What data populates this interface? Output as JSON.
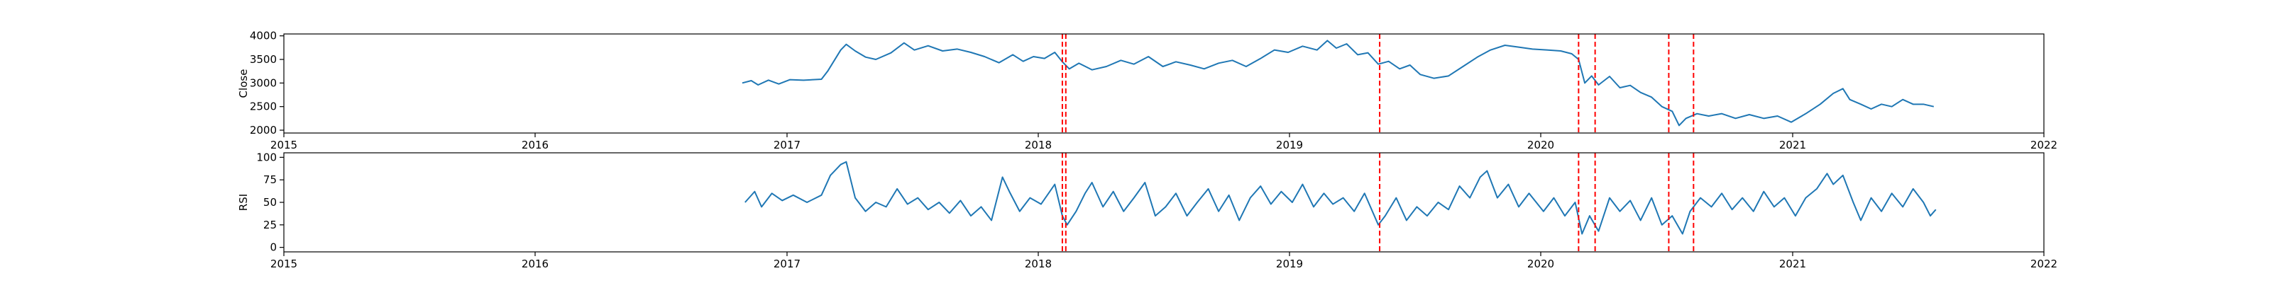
{
  "chart_data": [
    {
      "type": "line",
      "ylabel": "Close",
      "xlim": [
        "2015-01-01",
        "2022-01-01"
      ],
      "ylim": [
        1940,
        4040
      ],
      "x_ticks": [
        "2015",
        "2016",
        "2017",
        "2018",
        "2019",
        "2020",
        "2021",
        "2022"
      ],
      "y_ticks": [
        2000,
        2500,
        3000,
        3500,
        4000
      ],
      "line_color": "#1f77b4",
      "grid": false,
      "series": [
        {
          "points": [
            [
              "2016-10-28",
              3000
            ],
            [
              "2016-11-10",
              3050
            ],
            [
              "2016-11-20",
              2960
            ],
            [
              "2016-12-05",
              3060
            ],
            [
              "2016-12-20",
              2980
            ],
            [
              "2017-01-05",
              3070
            ],
            [
              "2017-01-25",
              3060
            ],
            [
              "2017-02-20",
              3080
            ],
            [
              "2017-03-01",
              3250
            ],
            [
              "2017-03-20",
              3700
            ],
            [
              "2017-03-28",
              3820
            ],
            [
              "2017-04-10",
              3680
            ],
            [
              "2017-04-25",
              3550
            ],
            [
              "2017-05-10",
              3500
            ],
            [
              "2017-06-01",
              3640
            ],
            [
              "2017-06-20",
              3850
            ],
            [
              "2017-07-05",
              3700
            ],
            [
              "2017-07-25",
              3790
            ],
            [
              "2017-08-15",
              3680
            ],
            [
              "2017-09-05",
              3720
            ],
            [
              "2017-09-25",
              3650
            ],
            [
              "2017-10-15",
              3560
            ],
            [
              "2017-11-05",
              3430
            ],
            [
              "2017-11-25",
              3600
            ],
            [
              "2017-12-10",
              3460
            ],
            [
              "2017-12-25",
              3560
            ],
            [
              "2018-01-10",
              3520
            ],
            [
              "2018-01-25",
              3650
            ],
            [
              "2018-02-05",
              3450
            ],
            [
              "2018-02-15",
              3300
            ],
            [
              "2018-03-01",
              3420
            ],
            [
              "2018-03-20",
              3280
            ],
            [
              "2018-04-10",
              3350
            ],
            [
              "2018-05-01",
              3480
            ],
            [
              "2018-05-20",
              3400
            ],
            [
              "2018-06-10",
              3560
            ],
            [
              "2018-07-01",
              3350
            ],
            [
              "2018-07-20",
              3450
            ],
            [
              "2018-08-10",
              3380
            ],
            [
              "2018-08-30",
              3300
            ],
            [
              "2018-09-20",
              3420
            ],
            [
              "2018-10-10",
              3480
            ],
            [
              "2018-10-30",
              3350
            ],
            [
              "2018-11-20",
              3520
            ],
            [
              "2018-12-10",
              3700
            ],
            [
              "2018-12-30",
              3650
            ],
            [
              "2019-01-20",
              3780
            ],
            [
              "2019-02-10",
              3700
            ],
            [
              "2019-02-25",
              3900
            ],
            [
              "2019-03-10",
              3740
            ],
            [
              "2019-03-25",
              3830
            ],
            [
              "2019-04-10",
              3600
            ],
            [
              "2019-04-25",
              3640
            ],
            [
              "2019-05-10",
              3400
            ],
            [
              "2019-05-25",
              3460
            ],
            [
              "2019-06-10",
              3300
            ],
            [
              "2019-06-25",
              3380
            ],
            [
              "2019-07-10",
              3180
            ],
            [
              "2019-07-30",
              3100
            ],
            [
              "2019-08-20",
              3150
            ],
            [
              "2019-09-10",
              3350
            ],
            [
              "2019-10-01",
              3550
            ],
            [
              "2019-10-20",
              3700
            ],
            [
              "2019-11-10",
              3800
            ],
            [
              "2019-11-30",
              3760
            ],
            [
              "2019-12-20",
              3720
            ],
            [
              "2020-01-10",
              3700
            ],
            [
              "2020-01-30",
              3680
            ],
            [
              "2020-02-15",
              3620
            ],
            [
              "2020-02-25",
              3500
            ],
            [
              "2020-03-05",
              3000
            ],
            [
              "2020-03-15",
              3150
            ],
            [
              "2020-03-25",
              2960
            ],
            [
              "2020-04-10",
              3140
            ],
            [
              "2020-04-25",
              2900
            ],
            [
              "2020-05-10",
              2950
            ],
            [
              "2020-05-25",
              2800
            ],
            [
              "2020-06-10",
              2700
            ],
            [
              "2020-06-25",
              2500
            ],
            [
              "2020-07-10",
              2400
            ],
            [
              "2020-07-20",
              2100
            ],
            [
              "2020-07-30",
              2250
            ],
            [
              "2020-08-15",
              2350
            ],
            [
              "2020-09-01",
              2300
            ],
            [
              "2020-09-20",
              2350
            ],
            [
              "2020-10-10",
              2250
            ],
            [
              "2020-10-30",
              2330
            ],
            [
              "2020-11-20",
              2250
            ],
            [
              "2020-12-10",
              2300
            ],
            [
              "2020-12-30",
              2170
            ],
            [
              "2021-01-20",
              2350
            ],
            [
              "2021-02-10",
              2550
            ],
            [
              "2021-03-01",
              2780
            ],
            [
              "2021-03-15",
              2880
            ],
            [
              "2021-03-25",
              2650
            ],
            [
              "2021-04-10",
              2550
            ],
            [
              "2021-04-25",
              2450
            ],
            [
              "2021-05-10",
              2550
            ],
            [
              "2021-05-25",
              2500
            ],
            [
              "2021-06-10",
              2650
            ],
            [
              "2021-06-25",
              2550
            ],
            [
              "2021-07-10",
              2550
            ],
            [
              "2021-07-25",
              2500
            ]
          ]
        }
      ],
      "event_lines": [
        "2018-02-05",
        "2018-02-10",
        "2019-05-12",
        "2020-02-25",
        "2020-03-20",
        "2020-07-05",
        "2020-08-10"
      ],
      "event_line_style": {
        "color": "#ff0000",
        "dash": "dashed"
      }
    },
    {
      "type": "line",
      "ylabel": "RSI",
      "xlim": [
        "2015-01-01",
        "2022-01-01"
      ],
      "ylim": [
        -5,
        105
      ],
      "x_ticks": [
        "2015",
        "2016",
        "2017",
        "2018",
        "2019",
        "2020",
        "2021",
        "2022"
      ],
      "y_ticks": [
        0,
        25,
        50,
        75,
        100
      ],
      "line_color": "#1f77b4",
      "grid": false,
      "series": [
        {
          "points": [
            [
              "2016-11-01",
              50
            ],
            [
              "2016-11-15",
              62
            ],
            [
              "2016-11-25",
              45
            ],
            [
              "2016-12-10",
              60
            ],
            [
              "2016-12-25",
              52
            ],
            [
              "2017-01-10",
              58
            ],
            [
              "2017-01-30",
              50
            ],
            [
              "2017-02-20",
              58
            ],
            [
              "2017-03-05",
              80
            ],
            [
              "2017-03-20",
              92
            ],
            [
              "2017-03-28",
              95
            ],
            [
              "2017-04-10",
              55
            ],
            [
              "2017-04-25",
              40
            ],
            [
              "2017-05-10",
              50
            ],
            [
              "2017-05-25",
              45
            ],
            [
              "2017-06-10",
              65
            ],
            [
              "2017-06-25",
              48
            ],
            [
              "2017-07-10",
              55
            ],
            [
              "2017-07-25",
              42
            ],
            [
              "2017-08-10",
              50
            ],
            [
              "2017-08-25",
              38
            ],
            [
              "2017-09-10",
              52
            ],
            [
              "2017-09-25",
              35
            ],
            [
              "2017-10-10",
              45
            ],
            [
              "2017-10-25",
              30
            ],
            [
              "2017-11-10",
              78
            ],
            [
              "2017-11-20",
              62
            ],
            [
              "2017-12-05",
              40
            ],
            [
              "2017-12-20",
              55
            ],
            [
              "2018-01-05",
              48
            ],
            [
              "2018-01-25",
              70
            ],
            [
              "2018-02-05",
              35
            ],
            [
              "2018-02-12",
              25
            ],
            [
              "2018-02-25",
              40
            ],
            [
              "2018-03-10",
              60
            ],
            [
              "2018-03-20",
              72
            ],
            [
              "2018-04-05",
              45
            ],
            [
              "2018-04-20",
              62
            ],
            [
              "2018-05-05",
              40
            ],
            [
              "2018-05-20",
              55
            ],
            [
              "2018-06-05",
              72
            ],
            [
              "2018-06-20",
              35
            ],
            [
              "2018-07-05",
              45
            ],
            [
              "2018-07-20",
              60
            ],
            [
              "2018-08-05",
              35
            ],
            [
              "2018-08-20",
              50
            ],
            [
              "2018-09-05",
              65
            ],
            [
              "2018-09-20",
              40
            ],
            [
              "2018-10-05",
              58
            ],
            [
              "2018-10-20",
              30
            ],
            [
              "2018-11-05",
              55
            ],
            [
              "2018-11-20",
              68
            ],
            [
              "2018-12-05",
              48
            ],
            [
              "2018-12-20",
              62
            ],
            [
              "2019-01-05",
              50
            ],
            [
              "2019-01-20",
              70
            ],
            [
              "2019-02-05",
              45
            ],
            [
              "2019-02-20",
              60
            ],
            [
              "2019-03-05",
              48
            ],
            [
              "2019-03-20",
              55
            ],
            [
              "2019-04-05",
              40
            ],
            [
              "2019-04-20",
              60
            ],
            [
              "2019-05-10",
              25
            ],
            [
              "2019-05-20",
              35
            ],
            [
              "2019-06-05",
              55
            ],
            [
              "2019-06-20",
              30
            ],
            [
              "2019-07-05",
              45
            ],
            [
              "2019-07-20",
              35
            ],
            [
              "2019-08-05",
              50
            ],
            [
              "2019-08-20",
              42
            ],
            [
              "2019-09-05",
              68
            ],
            [
              "2019-09-20",
              55
            ],
            [
              "2019-10-05",
              78
            ],
            [
              "2019-10-15",
              85
            ],
            [
              "2019-10-30",
              55
            ],
            [
              "2019-11-15",
              70
            ],
            [
              "2019-11-30",
              45
            ],
            [
              "2019-12-15",
              60
            ],
            [
              "2020-01-05",
              40
            ],
            [
              "2020-01-20",
              55
            ],
            [
              "2020-02-05",
              35
            ],
            [
              "2020-02-20",
              50
            ],
            [
              "2020-03-01",
              15
            ],
            [
              "2020-03-12",
              35
            ],
            [
              "2020-03-25",
              18
            ],
            [
              "2020-04-10",
              55
            ],
            [
              "2020-04-25",
              40
            ],
            [
              "2020-05-10",
              52
            ],
            [
              "2020-05-25",
              30
            ],
            [
              "2020-06-10",
              55
            ],
            [
              "2020-06-25",
              25
            ],
            [
              "2020-07-10",
              35
            ],
            [
              "2020-07-25",
              15
            ],
            [
              "2020-08-05",
              40
            ],
            [
              "2020-08-20",
              55
            ],
            [
              "2020-09-05",
              45
            ],
            [
              "2020-09-20",
              60
            ],
            [
              "2020-10-05",
              42
            ],
            [
              "2020-10-20",
              55
            ],
            [
              "2020-11-05",
              40
            ],
            [
              "2020-11-20",
              62
            ],
            [
              "2020-12-05",
              45
            ],
            [
              "2020-12-20",
              55
            ],
            [
              "2021-01-05",
              35
            ],
            [
              "2021-01-20",
              55
            ],
            [
              "2021-02-05",
              65
            ],
            [
              "2021-02-20",
              82
            ],
            [
              "2021-03-01",
              70
            ],
            [
              "2021-03-15",
              80
            ],
            [
              "2021-03-30",
              50
            ],
            [
              "2021-04-10",
              30
            ],
            [
              "2021-04-25",
              55
            ],
            [
              "2021-05-10",
              40
            ],
            [
              "2021-05-25",
              60
            ],
            [
              "2021-06-10",
              45
            ],
            [
              "2021-06-25",
              65
            ],
            [
              "2021-07-10",
              50
            ],
            [
              "2021-07-20",
              35
            ],
            [
              "2021-07-28",
              42
            ]
          ]
        }
      ],
      "event_lines": [
        "2018-02-05",
        "2018-02-10",
        "2019-05-12",
        "2020-02-25",
        "2020-03-20",
        "2020-07-05",
        "2020-08-10"
      ],
      "event_line_style": {
        "color": "#ff0000",
        "dash": "dashed"
      }
    }
  ]
}
